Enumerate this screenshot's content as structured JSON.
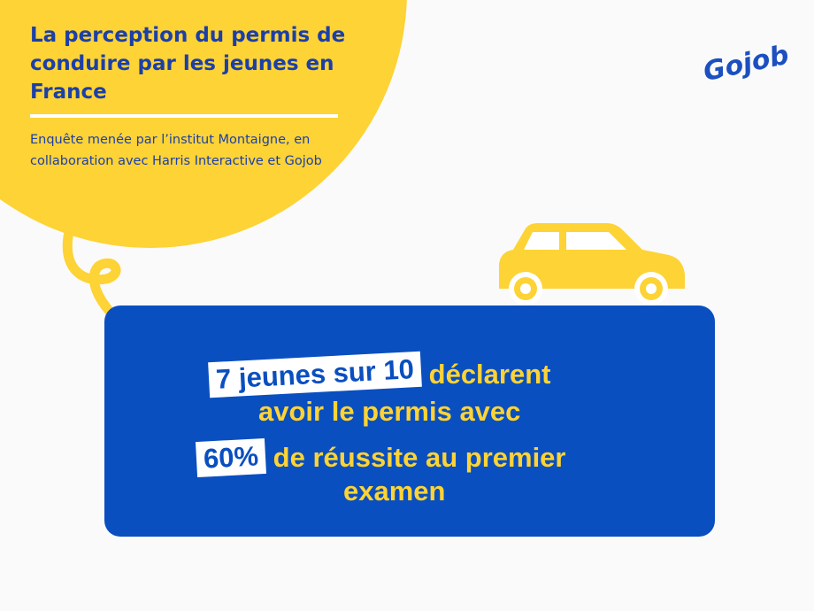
{
  "header": {
    "title": "La perception du permis de conduire par les jeunes en France",
    "subtitle": "Enquête menée par l’institut Montaigne, en collaboration avec Harris Interactive et Gojob"
  },
  "logo": {
    "text": "Gojob"
  },
  "stat": {
    "highlight1": "7 jeunes sur 10",
    "text1": "déclarent",
    "text2": "avoir le permis avec",
    "highlight2": "60%",
    "text3": "de réussite au premier",
    "text4": "examen"
  },
  "colors": {
    "yellow": "#fdd335",
    "blue": "#0a4fc0",
    "title_blue": "#1c3fa8",
    "background": "#fafafa"
  },
  "icons": [
    "car-icon",
    "curly-arrow-icon"
  ]
}
